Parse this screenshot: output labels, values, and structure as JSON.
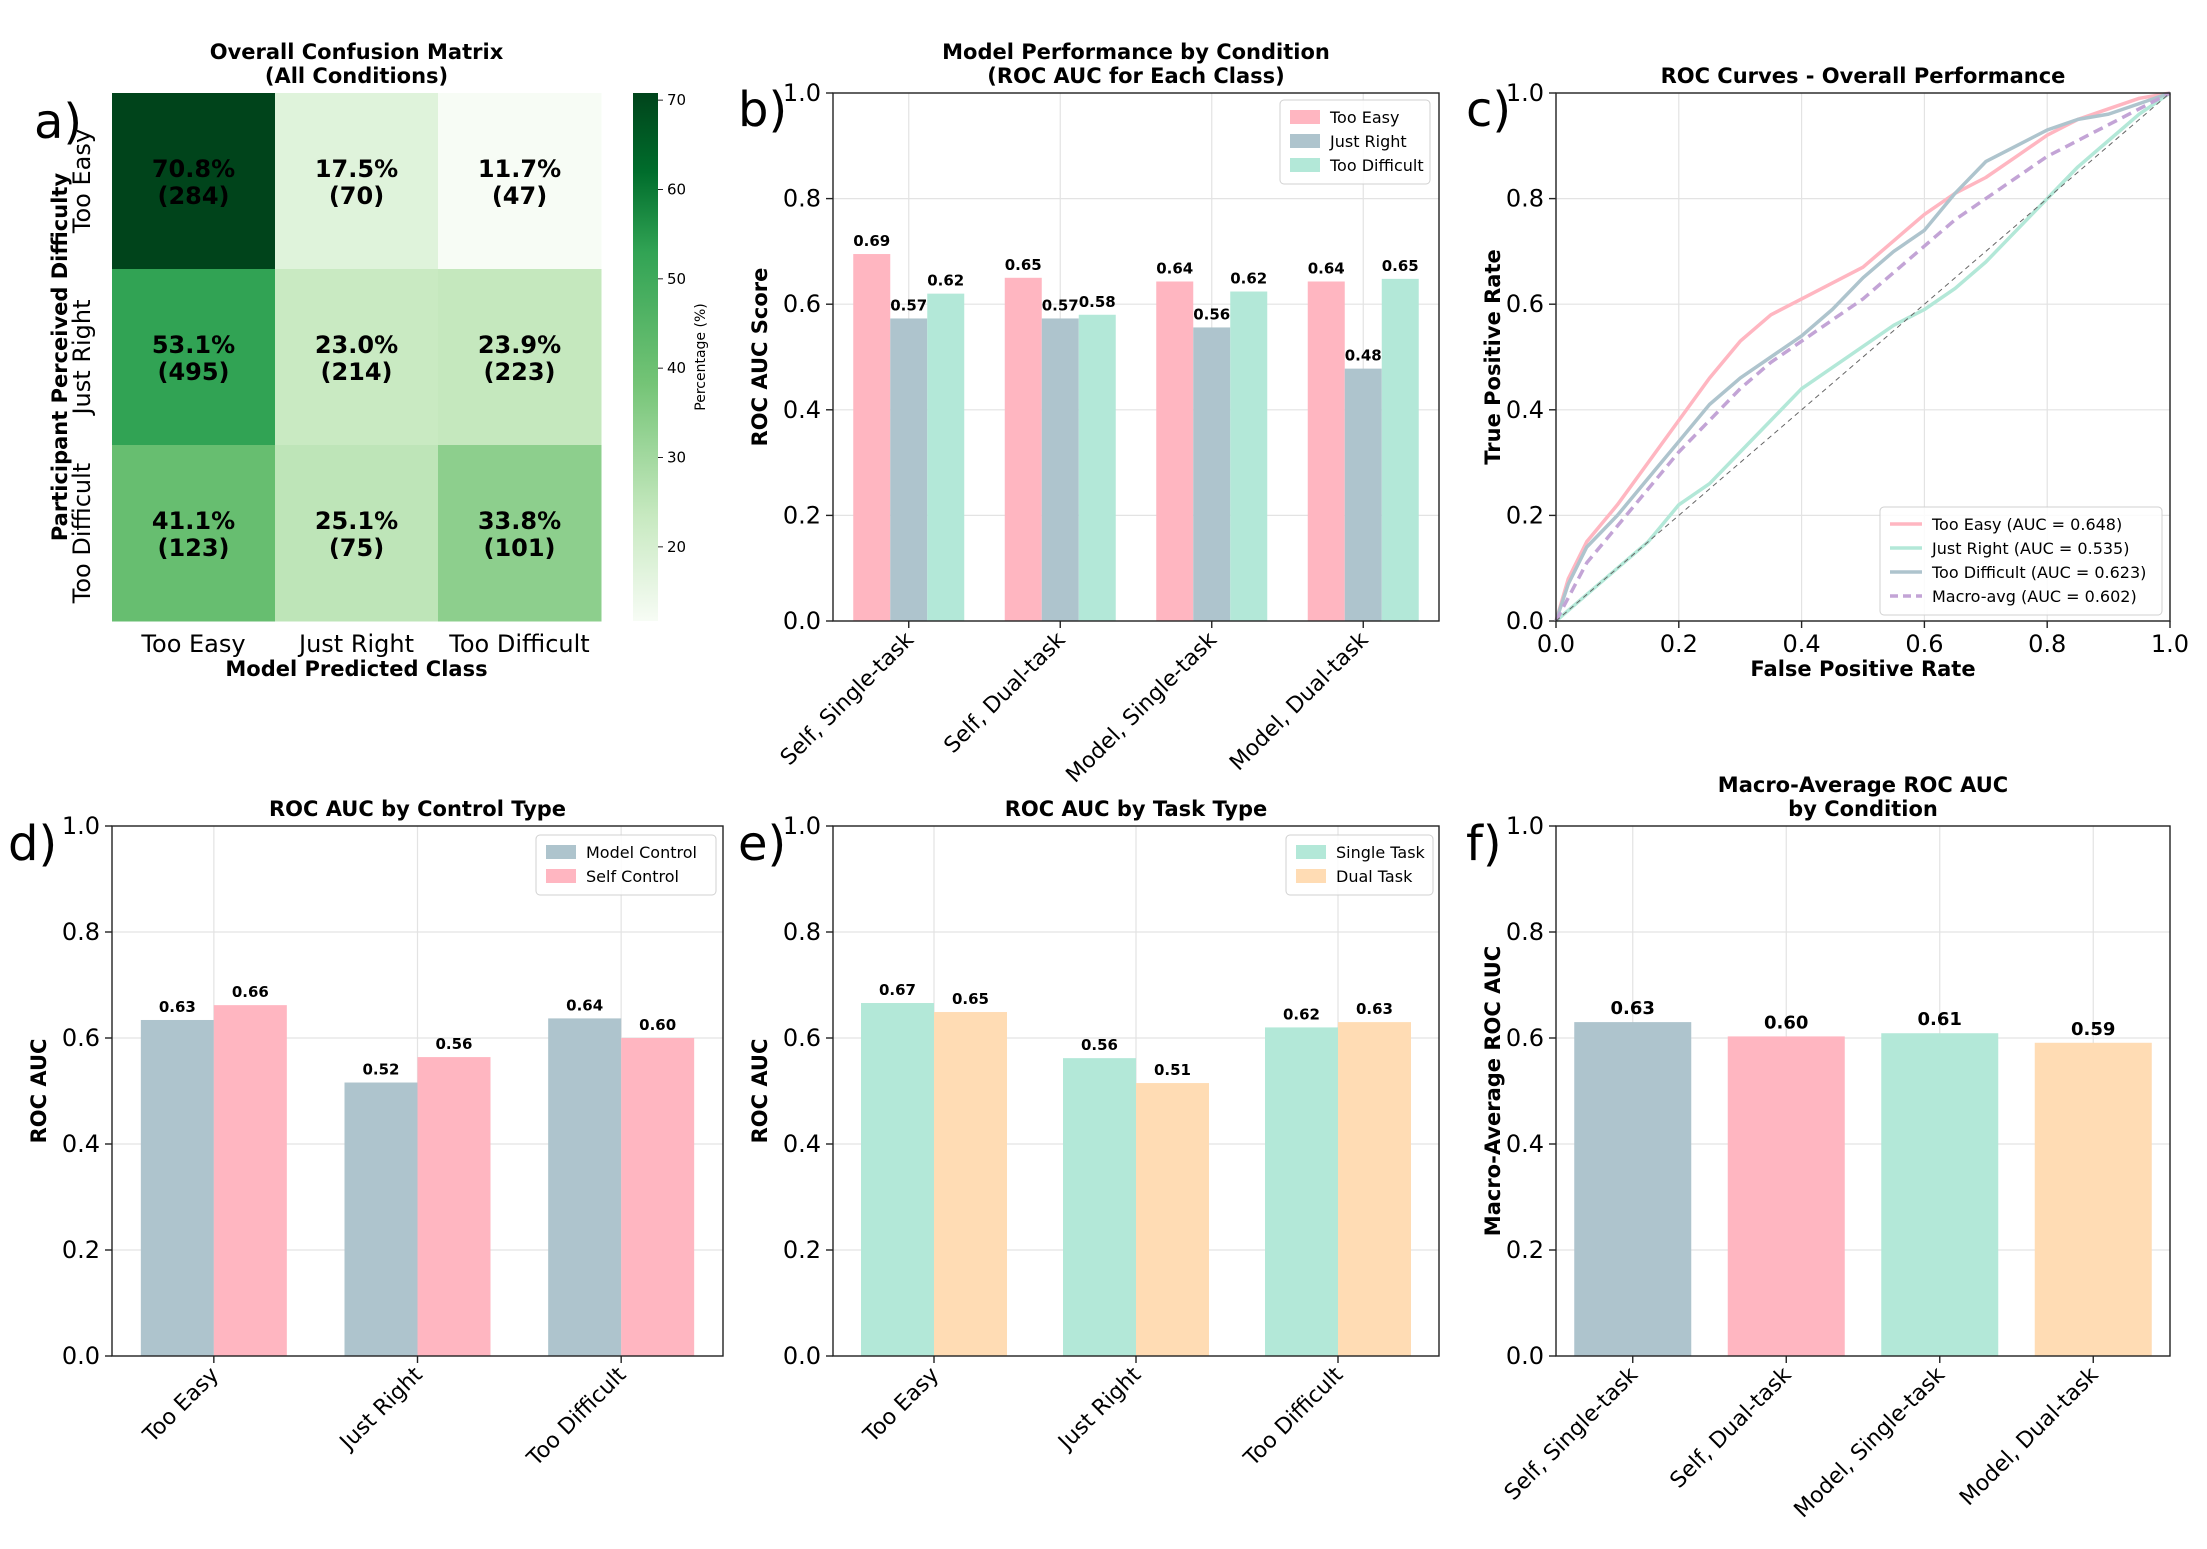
{
  "colors": {
    "too_easy": "#ffb6c1",
    "just_right": "#aec4cd",
    "too_difficult": "#b3e8d8",
    "dual_task": "#ffdcb4",
    "macro_avg": "#c3a4d6",
    "heat_low": "#f7fcf5",
    "heat_high": "#00441b"
  },
  "chart_data": [
    {
      "panel": "a)",
      "type": "heatmap",
      "title": "Overall Confusion Matrix\n(All Conditions)",
      "xlabel": "Model Predicted Class",
      "ylabel": "Participant Perceived Difficulty",
      "x_categories": [
        "Too Easy",
        "Just Right",
        "Too Difficult"
      ],
      "y_categories": [
        "Too Easy",
        "Just Right",
        "Too Difficult"
      ],
      "percent": [
        [
          70.8,
          17.5,
          11.7
        ],
        [
          53.1,
          23.0,
          23.9
        ],
        [
          41.1,
          25.1,
          33.8
        ]
      ],
      "counts": [
        [
          284,
          70,
          47
        ],
        [
          495,
          214,
          223
        ],
        [
          123,
          75,
          101
        ]
      ],
      "cell_labels": [
        [
          "70.8%\n(284)",
          "17.5%\n(70)",
          "11.7%\n(47)"
        ],
        [
          "53.1%\n(495)",
          "23.0%\n(214)",
          "23.9%\n(223)"
        ],
        [
          "41.1%\n(123)",
          "25.1%\n(75)",
          "33.8%\n(101)"
        ]
      ],
      "colorbar": {
        "label": "Percentage (%)",
        "ticks": [
          "70",
          "60",
          "50",
          "40",
          "30",
          "20"
        ],
        "range": [
          11.7,
          70.8
        ]
      }
    },
    {
      "panel": "b)",
      "type": "bar",
      "title": "Model Performance by Condition\n(ROC AUC for Each Class)",
      "xlabel": "",
      "ylabel": "ROC AUC Score",
      "ylim": [
        0,
        1
      ],
      "yticks": [
        "0.0",
        "0.2",
        "0.4",
        "0.6",
        "0.8",
        "1.0"
      ],
      "categories": [
        "Self, Single-task",
        "Self, Dual-task",
        "Model, Single-task",
        "Model, Dual-task"
      ],
      "series": [
        {
          "name": "Too Easy",
          "color_key": "too_easy",
          "values": [
            0.695,
            0.65,
            0.643,
            0.643
          ],
          "labels": [
            "0.69",
            "0.65",
            "0.64",
            "0.64"
          ]
        },
        {
          "name": "Just Right",
          "color_key": "just_right",
          "values": [
            0.573,
            0.573,
            0.556,
            0.478
          ],
          "labels": [
            "0.57",
            "0.57",
            "0.56",
            "0.48"
          ]
        },
        {
          "name": "Too Difficult",
          "color_key": "too_difficult",
          "values": [
            0.62,
            0.58,
            0.624,
            0.648
          ],
          "labels": [
            "0.62",
            "0.58",
            "0.62",
            "0.65"
          ]
        }
      ],
      "legend": "top-right"
    },
    {
      "panel": "c)",
      "type": "line",
      "title": "ROC Curves - Overall Performance",
      "xlabel": "False Positive Rate",
      "ylabel": "True Positive Rate",
      "xlim": [
        0,
        1
      ],
      "ylim": [
        0,
        1
      ],
      "xticks": [
        "0.0",
        "0.2",
        "0.4",
        "0.6",
        "0.8",
        "1.0"
      ],
      "yticks": [
        "0.0",
        "0.2",
        "0.4",
        "0.6",
        "0.8",
        "1.0"
      ],
      "series": [
        {
          "name": "Too Easy (AUC = 0.648)",
          "color_key": "too_easy",
          "dashed": false,
          "x": [
            0,
            0.02,
            0.05,
            0.1,
            0.15,
            0.2,
            0.25,
            0.3,
            0.35,
            0.4,
            0.45,
            0.5,
            0.55,
            0.6,
            0.65,
            0.7,
            0.75,
            0.8,
            0.85,
            0.9,
            0.95,
            1
          ],
          "y": [
            0,
            0.08,
            0.15,
            0.22,
            0.3,
            0.38,
            0.46,
            0.53,
            0.58,
            0.61,
            0.64,
            0.67,
            0.72,
            0.77,
            0.81,
            0.84,
            0.88,
            0.92,
            0.95,
            0.97,
            0.99,
            1
          ]
        },
        {
          "name": "Just Right (AUC = 0.535)",
          "color_key": "too_difficult",
          "dashed": false,
          "x": [
            0,
            0.05,
            0.1,
            0.15,
            0.2,
            0.25,
            0.3,
            0.35,
            0.4,
            0.45,
            0.5,
            0.55,
            0.6,
            0.65,
            0.7,
            0.75,
            0.8,
            0.85,
            0.9,
            0.95,
            1
          ],
          "y": [
            0,
            0.05,
            0.1,
            0.15,
            0.22,
            0.26,
            0.32,
            0.38,
            0.44,
            0.48,
            0.52,
            0.56,
            0.59,
            0.63,
            0.68,
            0.74,
            0.8,
            0.86,
            0.91,
            0.96,
            1
          ]
        },
        {
          "name": "Too Difficult (AUC = 0.623)",
          "color_key": "just_right",
          "dashed": false,
          "x": [
            0,
            0.02,
            0.05,
            0.1,
            0.15,
            0.2,
            0.25,
            0.3,
            0.35,
            0.4,
            0.45,
            0.5,
            0.55,
            0.6,
            0.65,
            0.7,
            0.75,
            0.8,
            0.85,
            0.9,
            0.95,
            1
          ],
          "y": [
            0,
            0.07,
            0.14,
            0.2,
            0.27,
            0.34,
            0.41,
            0.46,
            0.5,
            0.54,
            0.59,
            0.65,
            0.7,
            0.74,
            0.81,
            0.87,
            0.9,
            0.93,
            0.95,
            0.96,
            0.98,
            1
          ]
        },
        {
          "name": "Macro-avg (AUC = 0.602)",
          "color_key": "macro_avg",
          "dashed": true,
          "x": [
            0,
            0.05,
            0.1,
            0.15,
            0.2,
            0.25,
            0.3,
            0.35,
            0.4,
            0.45,
            0.5,
            0.55,
            0.6,
            0.65,
            0.7,
            0.75,
            0.8,
            0.85,
            0.9,
            0.95,
            1
          ],
          "y": [
            0,
            0.11,
            0.18,
            0.25,
            0.32,
            0.38,
            0.44,
            0.49,
            0.53,
            0.57,
            0.61,
            0.66,
            0.71,
            0.76,
            0.8,
            0.84,
            0.88,
            0.91,
            0.94,
            0.97,
            1
          ]
        },
        {
          "name": "Chance",
          "color": "#666666",
          "dashed": true,
          "legend": false,
          "x": [
            0,
            1
          ],
          "y": [
            0,
            1
          ]
        }
      ],
      "legend": "lower-right"
    },
    {
      "panel": "d)",
      "type": "bar",
      "title": "ROC AUC by Control Type",
      "xlabel": "",
      "ylabel": "ROC AUC",
      "ylim": [
        0,
        1
      ],
      "yticks": [
        "0.0",
        "0.2",
        "0.4",
        "0.6",
        "0.8",
        "1.0"
      ],
      "categories": [
        "Too Easy",
        "Just Right",
        "Too Difficult"
      ],
      "series": [
        {
          "name": "Model Control",
          "color_key": "just_right",
          "values": [
            0.634,
            0.516,
            0.637
          ],
          "labels": [
            "0.63",
            "0.52",
            "0.64"
          ]
        },
        {
          "name": "Self Control",
          "color_key": "too_easy",
          "values": [
            0.662,
            0.564,
            0.6
          ],
          "labels": [
            "0.66",
            "0.56",
            "0.60"
          ]
        }
      ],
      "legend": "top-right"
    },
    {
      "panel": "e)",
      "type": "bar",
      "title": "ROC AUC by Task Type",
      "xlabel": "",
      "ylabel": "ROC AUC",
      "ylim": [
        0,
        1
      ],
      "yticks": [
        "0.0",
        "0.2",
        "0.4",
        "0.6",
        "0.8",
        "1.0"
      ],
      "categories": [
        "Too Easy",
        "Just Right",
        "Too Difficult"
      ],
      "series": [
        {
          "name": "Single Task",
          "color_key": "too_difficult",
          "values": [
            0.666,
            0.562,
            0.62
          ],
          "labels": [
            "0.67",
            "0.56",
            "0.62"
          ]
        },
        {
          "name": "Dual Task",
          "color_key": "dual_task",
          "values": [
            0.649,
            0.515,
            0.63
          ],
          "labels": [
            "0.65",
            "0.51",
            "0.63"
          ]
        }
      ],
      "legend": "top-right"
    },
    {
      "panel": "f)",
      "type": "bar",
      "title": "Macro-Average ROC AUC\nby Condition",
      "xlabel": "",
      "ylabel": "Macro-Average ROC AUC",
      "ylim": [
        0,
        1
      ],
      "yticks": [
        "0.0",
        "0.2",
        "0.4",
        "0.6",
        "0.8",
        "1.0"
      ],
      "categories": [
        "Self, Single-task",
        "Self, Dual-task",
        "Model, Single-task",
        "Model, Dual-task"
      ],
      "series": [
        {
          "name": "Macro-Average ROC AUC",
          "color_keys": [
            "just_right",
            "too_easy",
            "too_difficult",
            "dual_task"
          ],
          "values": [
            0.63,
            0.603,
            0.609,
            0.591
          ],
          "labels": [
            "0.63",
            "0.60",
            "0.61",
            "0.59"
          ]
        }
      ]
    }
  ]
}
